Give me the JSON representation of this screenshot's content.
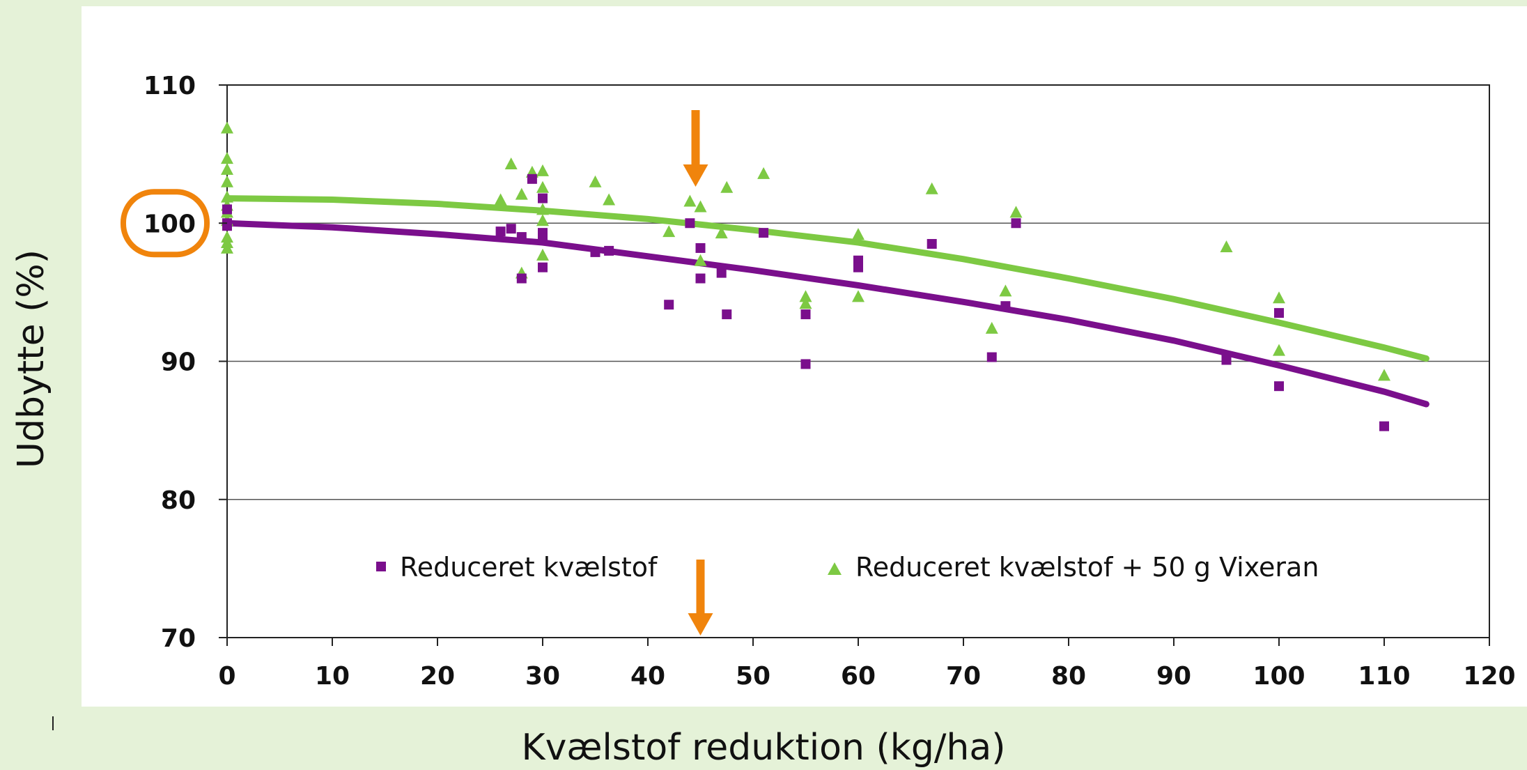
{
  "colors": {
    "background": "#e5f2d8",
    "panel": "#ffffff",
    "series_purple": "#7a0f8c",
    "series_green": "#7dc943",
    "highlight_orange": "#f0840c",
    "grid": "#555555"
  },
  "chart_data": {
    "type": "scatter",
    "title": "",
    "xlabel": "Kvælstof reduktion (kg/ha)",
    "ylabel": "Udbytte (%)",
    "xlim": [
      0,
      120
    ],
    "ylim": [
      70,
      110
    ],
    "x_ticks": [
      "0",
      "10",
      "20",
      "30",
      "40",
      "50",
      "60",
      "70",
      "80",
      "90",
      "100",
      "110",
      "120"
    ],
    "y_ticks": [
      "70",
      "80",
      "90",
      "100",
      "110"
    ],
    "grid": "horizontal",
    "legend_position": "bottom-inside",
    "highlighted_y_tick": "100",
    "arrow_markers_x": [
      45
    ],
    "series": [
      {
        "name": "Reduceret kvælstof",
        "marker": "square",
        "color": "#7a0f8c",
        "points": [
          [
            0,
            100
          ],
          [
            0,
            101
          ],
          [
            0,
            99.8
          ],
          [
            26,
            99.4
          ],
          [
            27,
            99.6
          ],
          [
            28,
            99
          ],
          [
            28,
            96
          ],
          [
            29,
            103.2
          ],
          [
            30,
            101.8
          ],
          [
            30,
            99.3
          ],
          [
            30,
            98.9
          ],
          [
            30,
            96.8
          ],
          [
            35,
            97.9
          ],
          [
            36.3,
            98
          ],
          [
            42,
            94.1
          ],
          [
            44,
            100
          ],
          [
            45,
            98.2
          ],
          [
            45,
            96
          ],
          [
            47,
            96.4
          ],
          [
            47.5,
            93.4
          ],
          [
            51,
            99.3
          ],
          [
            55,
            93.4
          ],
          [
            55,
            89.8
          ],
          [
            60,
            97.3
          ],
          [
            60,
            96.8
          ],
          [
            67,
            98.5
          ],
          [
            72.7,
            90.3
          ],
          [
            74,
            94
          ],
          [
            75,
            100
          ],
          [
            95,
            90.1
          ],
          [
            100,
            93.5
          ],
          [
            100,
            88.2
          ],
          [
            110,
            85.3
          ]
        ],
        "trend": {
          "x": [
            0,
            10,
            20,
            30,
            40,
            50,
            60,
            70,
            80,
            90,
            100,
            110,
            114
          ],
          "y": [
            100,
            99.7,
            99.2,
            98.6,
            97.6,
            96.6,
            95.5,
            94.3,
            93,
            91.5,
            89.7,
            87.8,
            86.9
          ]
        }
      },
      {
        "name": "Reduceret kvælstof + 50 g Vixeran",
        "marker": "triangle",
        "color": "#7dc943",
        "points": [
          [
            0,
            106.9
          ],
          [
            0,
            104.7
          ],
          [
            0,
            103.9
          ],
          [
            0,
            103
          ],
          [
            0,
            101.9
          ],
          [
            0,
            101.3
          ],
          [
            0,
            100.8
          ],
          [
            0,
            100.2
          ],
          [
            0,
            99
          ],
          [
            0,
            98.6
          ],
          [
            0,
            98.2
          ],
          [
            26,
            101.7
          ],
          [
            27,
            104.3
          ],
          [
            28,
            102.1
          ],
          [
            28,
            96.4
          ],
          [
            29,
            103.7
          ],
          [
            30,
            103.8
          ],
          [
            30,
            102.6
          ],
          [
            30,
            101
          ],
          [
            30,
            100.2
          ],
          [
            30,
            97.7
          ],
          [
            35,
            103
          ],
          [
            36.3,
            101.7
          ],
          [
            42,
            99.4
          ],
          [
            44,
            101.6
          ],
          [
            45,
            101.2
          ],
          [
            45,
            97.3
          ],
          [
            47,
            99.3
          ],
          [
            47.5,
            102.6
          ],
          [
            51,
            103.6
          ],
          [
            55,
            94.7
          ],
          [
            55,
            94.2
          ],
          [
            60,
            99.2
          ],
          [
            60,
            94.7
          ],
          [
            67,
            102.5
          ],
          [
            72.7,
            92.4
          ],
          [
            74,
            95.1
          ],
          [
            75,
            100.8
          ],
          [
            95,
            98.3
          ],
          [
            100,
            94.6
          ],
          [
            100,
            90.8
          ],
          [
            110,
            89
          ]
        ],
        "trend": {
          "x": [
            0,
            10,
            20,
            30,
            40,
            50,
            60,
            70,
            80,
            90,
            100,
            110,
            114
          ],
          "y": [
            101.8,
            101.7,
            101.4,
            100.9,
            100.3,
            99.5,
            98.6,
            97.4,
            96,
            94.5,
            92.8,
            91,
            90.2
          ]
        }
      }
    ]
  }
}
